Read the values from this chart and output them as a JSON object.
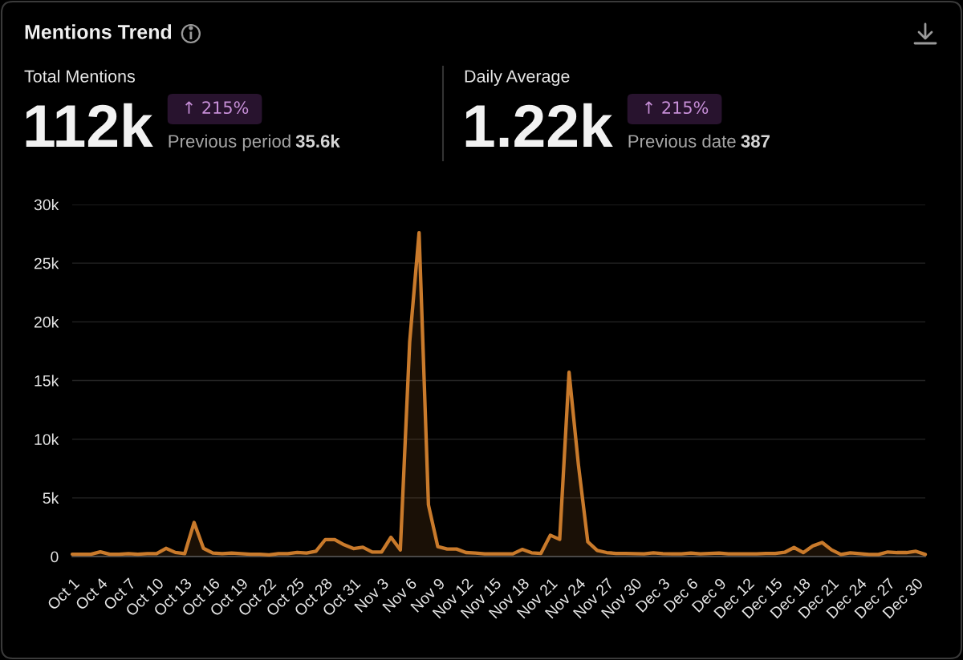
{
  "chart_data": {
    "type": "area",
    "title": "Mentions Trend",
    "annotations": [
      "Total Mentions",
      "112k",
      "↑ 215%",
      "Previous period",
      "35.6k",
      "Daily Average",
      "1.22k",
      "↑ 215%",
      "Previous date",
      "387"
    ],
    "categories": [
      "Oct 1",
      null,
      null,
      "Oct 4",
      null,
      null,
      "Oct 7",
      null,
      null,
      "Oct 10",
      null,
      null,
      "Oct 13",
      null,
      null,
      "Oct 16",
      null,
      null,
      "Oct 19",
      null,
      null,
      "Oct 22",
      null,
      null,
      "Oct 25",
      null,
      null,
      "Oct 28",
      null,
      null,
      "Oct 31",
      null,
      null,
      "Nov 3",
      null,
      null,
      "Nov 6",
      null,
      null,
      "Nov 9",
      null,
      null,
      "Nov 12",
      null,
      null,
      "Nov 15",
      null,
      null,
      "Nov 18",
      null,
      null,
      "Nov 21",
      null,
      null,
      "Nov 24",
      null,
      null,
      "Nov 27",
      null,
      null,
      "Nov 30",
      null,
      null,
      "Dec 3",
      null,
      null,
      "Dec 6",
      null,
      null,
      "Dec 9",
      null,
      null,
      "Dec 12",
      null,
      null,
      "Dec 15",
      null,
      null,
      "Dec 18",
      null,
      null,
      "Dec 21",
      null,
      null,
      "Dec 24",
      null,
      null,
      "Dec 27",
      null,
      null,
      "Dec 30",
      null
    ],
    "series": [
      {
        "color": "#c97a2b",
        "values": [
          200,
          200,
          200,
          400,
          200,
          200,
          250,
          200,
          250,
          250,
          700,
          350,
          250,
          2900,
          700,
          300,
          250,
          300,
          250,
          200,
          200,
          150,
          250,
          250,
          350,
          300,
          450,
          1450,
          1450,
          1000,
          680,
          800,
          390,
          390,
          1640,
          570,
          18300,
          27600,
          4400,
          840,
          640,
          640,
          340,
          300,
          230,
          230,
          230,
          230,
          610,
          320,
          270,
          1820,
          1460,
          15700,
          7800,
          1250,
          520,
          340,
          270,
          270,
          250,
          230,
          320,
          250,
          230,
          230,
          300,
          230,
          270,
          300,
          230,
          230,
          230,
          230,
          270,
          270,
          360,
          770,
          340,
          900,
          1200,
          570,
          180,
          320,
          250,
          180,
          180,
          390,
          340,
          340,
          450,
          180
        ]
      }
    ],
    "ylim": [
      0,
      30000
    ],
    "yticks": [
      0,
      {
        "value": 5000,
        "label": "5k"
      },
      {
        "value": 10000,
        "label": "10k"
      },
      {
        "value": 15000,
        "label": "15k"
      },
      {
        "value": 20000,
        "label": "20k"
      },
      {
        "value": 25000,
        "label": "25k"
      },
      {
        "value": 30000,
        "label": "30k"
      }
    ],
    "grid": "y",
    "line_style": "solid"
  }
}
